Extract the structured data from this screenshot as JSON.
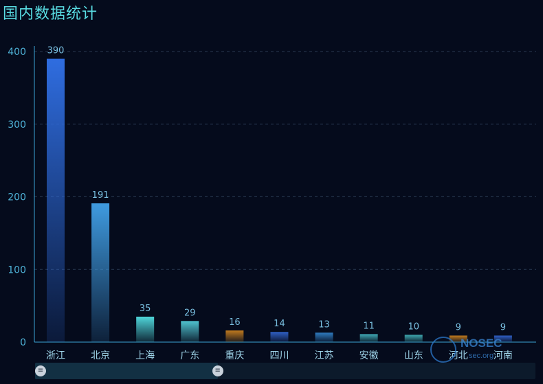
{
  "title": "国内数据统计",
  "chart_data": {
    "type": "bar",
    "categories": [
      "浙江",
      "北京",
      "上海",
      "广东",
      "重庆",
      "四川",
      "江苏",
      "安徽",
      "山东",
      "河北",
      "河南"
    ],
    "values": [
      390,
      191,
      35,
      29,
      16,
      14,
      13,
      11,
      10,
      9,
      9
    ],
    "ylim": [
      0,
      400
    ],
    "yticks": [
      0,
      100,
      200,
      300,
      400
    ],
    "grid": true,
    "bar_colors": [
      "#2f6de0",
      "#3f9be0",
      "#4fd6da",
      "#4fc2cf",
      "#c07a1e",
      "#2f5fc4",
      "#2f7bc0",
      "#3faab6",
      "#3fa9b0",
      "#c07a1e",
      "#2f5fc4"
    ],
    "axis_color": "#3aa6d6",
    "grid_color": "#2a3a52"
  },
  "data_zoom": {
    "start_fraction": 0,
    "end_fraction": 0.365,
    "handle_glyph": "≡"
  },
  "watermark": {
    "brand": "NOSEC",
    "sub": "sec.org",
    "icon": "shield-icon"
  }
}
